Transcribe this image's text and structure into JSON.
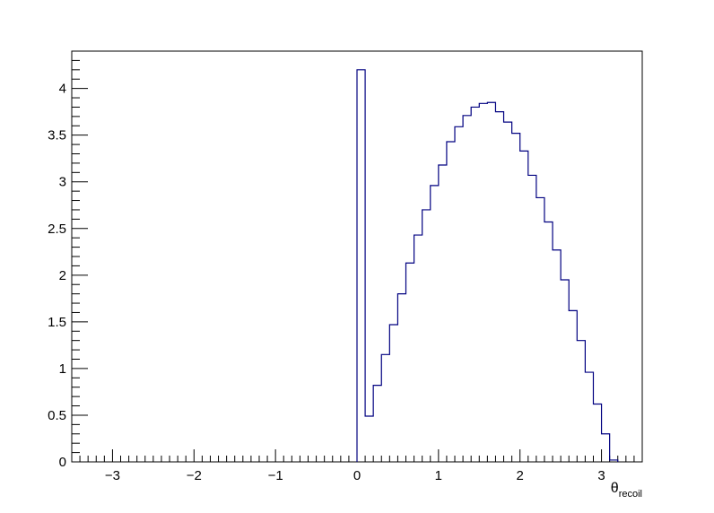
{
  "chart_data": {
    "type": "bar",
    "style": "step-histogram",
    "title": "",
    "xlabel": "θ",
    "xlabel_subscript": "recoil",
    "ylabel": "",
    "xlim": [
      -3.5,
      3.5
    ],
    "ylim": [
      0,
      4.4
    ],
    "grid": false,
    "legend": "none",
    "bin_width": 0.1,
    "bin_start": 0.0,
    "values": [
      4.2,
      0.49,
      0.82,
      1.15,
      1.47,
      1.8,
      2.13,
      2.43,
      2.7,
      2.96,
      3.18,
      3.43,
      3.59,
      3.71,
      3.8,
      3.84,
      3.85,
      3.75,
      3.64,
      3.52,
      3.33,
      3.07,
      2.83,
      2.57,
      2.27,
      1.95,
      1.62,
      1.3,
      0.96,
      0.62,
      0.3,
      0.02
    ],
    "x_ticks": [
      -3,
      -2,
      -1,
      0,
      1,
      2,
      3
    ],
    "x_tick_labels": [
      "−3",
      "−2",
      "−1",
      "0",
      "1",
      "2",
      "3"
    ],
    "y_ticks": [
      0,
      0.5,
      1,
      1.5,
      2,
      2.5,
      3,
      3.5,
      4
    ],
    "y_tick_labels": [
      "0",
      "0.5",
      "1",
      "1.5",
      "2",
      "2.5",
      "3",
      "3.5",
      "4"
    ],
    "line_color": "#000080",
    "axis_color": "#000000"
  }
}
